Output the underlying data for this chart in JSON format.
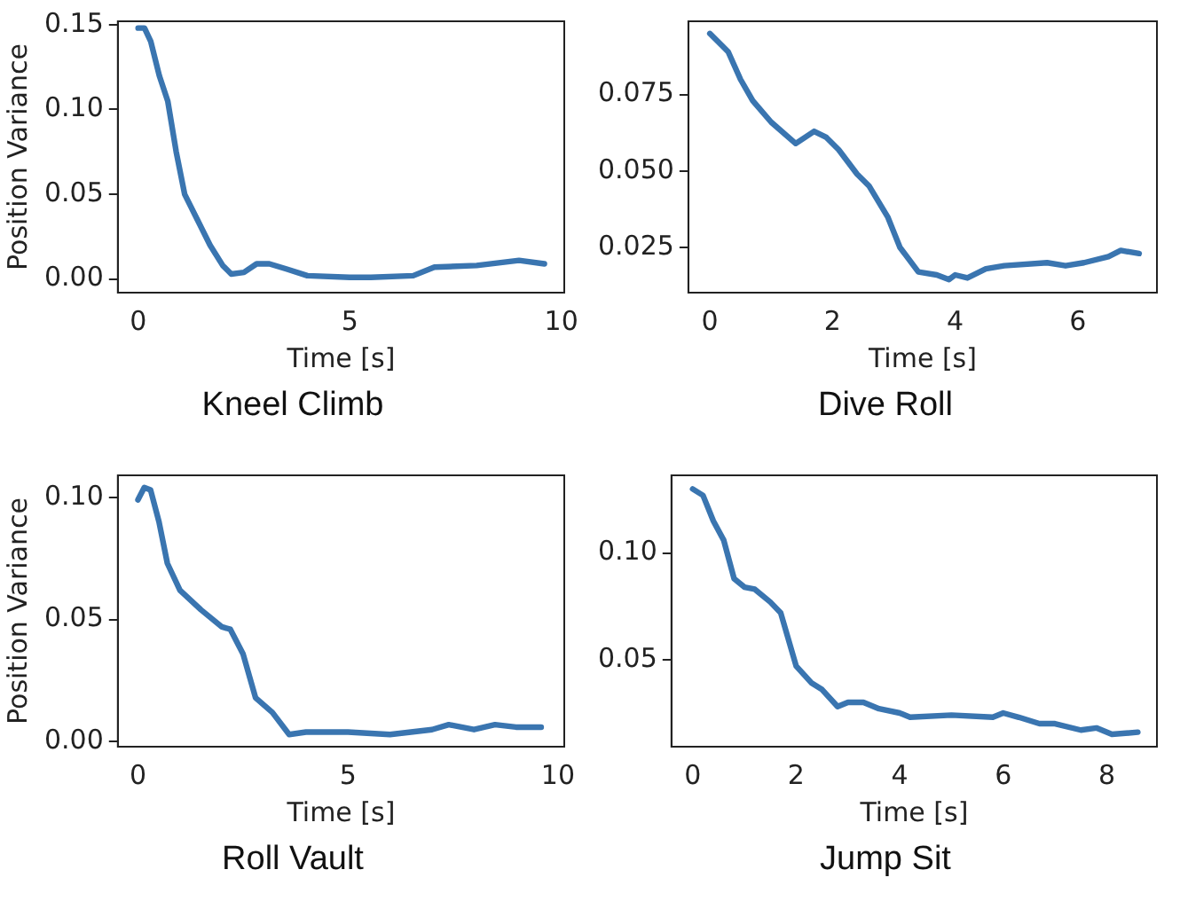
{
  "chart_data": [
    {
      "type": "line",
      "title": "Kneel Climb",
      "xlabel": "Time [s]",
      "ylabel": "Position Variance",
      "xlim": [
        -0.48,
        10.07
      ],
      "ylim": [
        -0.008,
        0.152
      ],
      "xticks": [
        0,
        5,
        10
      ],
      "yticks": [
        {
          "value": 0,
          "label": "0.00"
        },
        {
          "value": 0.05,
          "label": "0.05"
        },
        {
          "value": 0.1,
          "label": "0.10"
        },
        {
          "value": 0.15,
          "label": "0.15"
        }
      ],
      "grid": false,
      "legend": false,
      "marker": "none",
      "line_style": "solid",
      "x": [
        0,
        0.15,
        0.3,
        0.5,
        0.7,
        0.9,
        1.1,
        1.4,
        1.7,
        2.0,
        2.2,
        2.5,
        2.8,
        3.1,
        3.5,
        4,
        5,
        5.5,
        6.5,
        7,
        8,
        9,
        9.6
      ],
      "series": [
        {
          "color": "#3a75b0",
          "values": [
            0.148,
            0.148,
            0.14,
            0.12,
            0.105,
            0.075,
            0.05,
            0.035,
            0.02,
            0.008,
            0.003,
            0.004,
            0.009,
            0.009,
            0.006,
            0.002,
            0.001,
            0.001,
            0.002,
            0.007,
            0.008,
            0.011,
            0.009
          ]
        }
      ]
    },
    {
      "type": "line",
      "title": "Dive Roll",
      "xlabel": "Time [s]",
      "xlim": [
        -0.35,
        7.29
      ],
      "ylim": [
        0.0102,
        0.099
      ],
      "xticks": [
        0,
        2,
        4,
        6
      ],
      "yticks": [
        {
          "value": 0.025,
          "label": "0.025"
        },
        {
          "value": 0.05,
          "label": "0.050"
        },
        {
          "value": 0.075,
          "label": "0.075"
        }
      ],
      "grid": false,
      "legend": false,
      "marker": "none",
      "line_style": "solid",
      "x": [
        0,
        0.2,
        0.3,
        0.5,
        0.7,
        1.0,
        1.4,
        1.7,
        1.9,
        2.1,
        2.4,
        2.6,
        2.9,
        3.1,
        3.4,
        3.7,
        3.9,
        4.0,
        4.2,
        4.5,
        4.8,
        5.5,
        5.8,
        6.1,
        6.5,
        6.7,
        7.0
      ],
      "series": [
        {
          "color": "#3a75b0",
          "values": [
            0.095,
            0.091,
            0.089,
            0.08,
            0.073,
            0.066,
            0.059,
            0.063,
            0.061,
            0.057,
            0.049,
            0.045,
            0.035,
            0.025,
            0.017,
            0.016,
            0.0145,
            0.016,
            0.015,
            0.018,
            0.019,
            0.02,
            0.019,
            0.02,
            0.022,
            0.024,
            0.023
          ]
        }
      ]
    },
    {
      "type": "line",
      "title": "Roll Vault",
      "xlabel": "Time [s]",
      "ylabel": "Position Variance",
      "xlim": [
        -0.48,
        10.15
      ],
      "ylim": [
        -0.002,
        0.109
      ],
      "xticks": [
        0,
        5,
        10
      ],
      "yticks": [
        {
          "value": 0,
          "label": "0.00"
        },
        {
          "value": 0.05,
          "label": "0.05"
        },
        {
          "value": 0.1,
          "label": "0.10"
        }
      ],
      "grid": false,
      "legend": false,
      "marker": "none",
      "line_style": "solid",
      "x": [
        0,
        0.15,
        0.3,
        0.5,
        0.7,
        1.0,
        1.5,
        2.0,
        2.2,
        2.5,
        2.8,
        3.2,
        3.6,
        4,
        5,
        6,
        7,
        7.4,
        8,
        8.5,
        9,
        9.6
      ],
      "series": [
        {
          "color": "#3a75b0",
          "values": [
            0.099,
            0.104,
            0.103,
            0.09,
            0.073,
            0.062,
            0.054,
            0.047,
            0.046,
            0.036,
            0.018,
            0.012,
            0.003,
            0.004,
            0.004,
            0.003,
            0.005,
            0.007,
            0.005,
            0.007,
            0.006,
            0.006
          ]
        }
      ]
    },
    {
      "type": "line",
      "title": "Jump Sit",
      "xlabel": "Time [s]",
      "xlim": [
        -0.41,
        8.97
      ],
      "ylim": [
        0.0092,
        0.1364
      ],
      "xticks": [
        0,
        2,
        4,
        6,
        8
      ],
      "yticks": [
        {
          "value": 0.05,
          "label": "0.05"
        },
        {
          "value": 0.1,
          "label": "0.10"
        }
      ],
      "grid": false,
      "legend": false,
      "marker": "none",
      "line_style": "solid",
      "x": [
        0,
        0.2,
        0.4,
        0.6,
        0.8,
        1.0,
        1.2,
        1.5,
        1.7,
        2.0,
        2.3,
        2.5,
        2.8,
        3.0,
        3.3,
        3.6,
        4.0,
        4.2,
        5,
        5.8,
        6.0,
        6.3,
        6.7,
        7.0,
        7.5,
        7.8,
        8.1,
        8.6
      ],
      "series": [
        {
          "color": "#3a75b0",
          "values": [
            0.13,
            0.127,
            0.115,
            0.106,
            0.088,
            0.084,
            0.083,
            0.077,
            0.072,
            0.047,
            0.039,
            0.036,
            0.028,
            0.03,
            0.03,
            0.027,
            0.025,
            0.023,
            0.024,
            0.023,
            0.025,
            0.023,
            0.02,
            0.02,
            0.017,
            0.018,
            0.015,
            0.016
          ]
        }
      ]
    }
  ]
}
